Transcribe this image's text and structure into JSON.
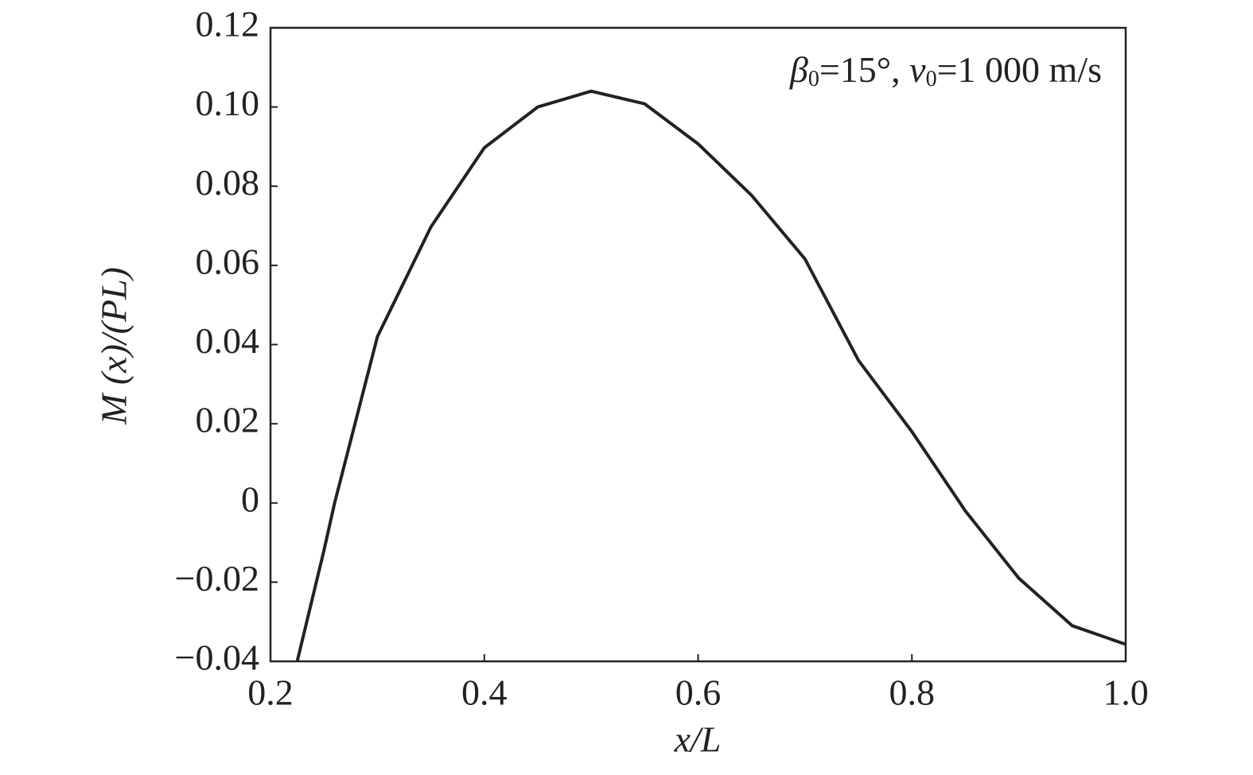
{
  "chart_data": {
    "type": "line",
    "annotation": [
      "β",
      "0",
      "=15°, ",
      "v",
      "0",
      "=1 000 m/s"
    ],
    "xlabel": "x/L",
    "ylabel": "M (x)/(PL)",
    "x": [
      0.225,
      0.25,
      0.26,
      0.3,
      0.35,
      0.4,
      0.45,
      0.5,
      0.55,
      0.6,
      0.65,
      0.7,
      0.75,
      0.8,
      0.85,
      0.9,
      0.95,
      1.0
    ],
    "values": [
      -0.04,
      -0.012,
      0,
      0.042,
      0.0697,
      0.0897,
      0.1,
      0.104,
      0.1008,
      0.0907,
      0.0777,
      0.0616,
      0.036,
      0.018,
      -0.002,
      -0.019,
      -0.031,
      -0.0357
    ],
    "color": "#222222",
    "xlim": [
      0.2,
      1.0
    ],
    "ylim": [
      -0.04,
      0.12
    ],
    "xticks": [
      0.2,
      0.4,
      0.6,
      0.8,
      {
        "value": 1.0,
        "label": "1.0"
      }
    ],
    "yticks": [
      {
        "value": -0.04,
        "label": "−0.04"
      },
      {
        "value": -0.02,
        "label": "−0.02"
      },
      0,
      0.02,
      0.04,
      0.06,
      0.08,
      {
        "value": 0.1,
        "label": "0.10"
      },
      0.12
    ]
  }
}
